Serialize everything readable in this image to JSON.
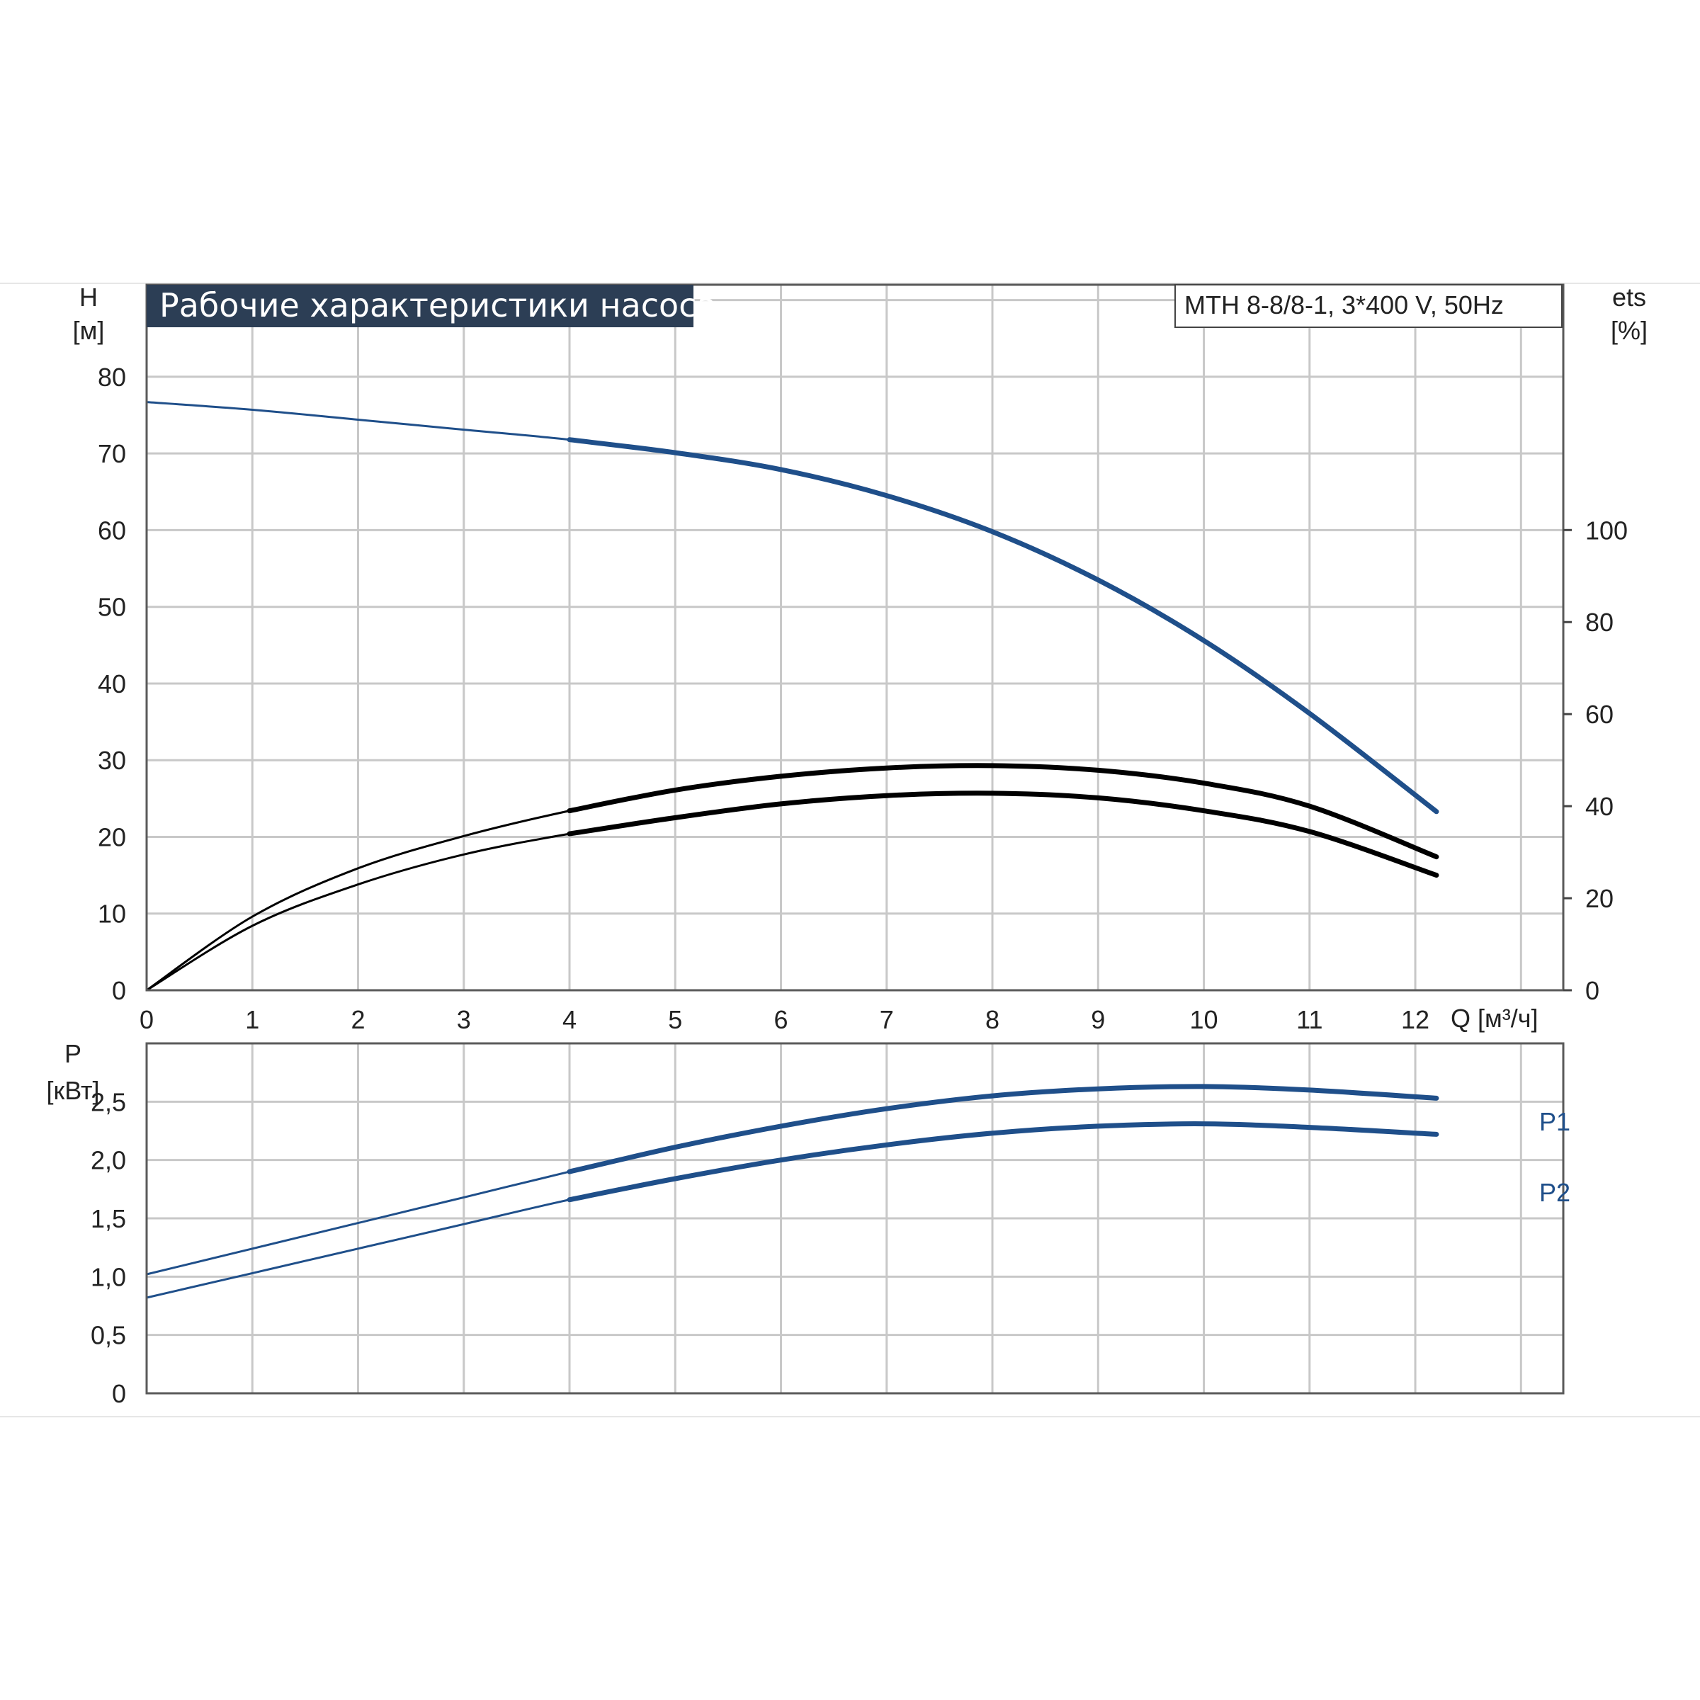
{
  "chart_data": [
    {
      "type": "line",
      "title": "Рабочие характеристики насоса",
      "subtitle": "MTH 8-8/8-1, 3*400 V, 50Hz",
      "ylabel": "H",
      "ylabel_unit": "[м]",
      "y2label": "ets",
      "y2label_unit": "[%]",
      "xlabel": "Q [м³/ч]",
      "xlim": [
        0,
        13.4
      ],
      "ylim": [
        0,
        92
      ],
      "y2lim": [
        0,
        153.3
      ],
      "x_ticks": [
        "0",
        "1",
        "2",
        "3",
        "4",
        "5",
        "6",
        "7",
        "8",
        "9",
        "10",
        "11",
        "12"
      ],
      "y_ticks": [
        "0",
        "10",
        "20",
        "30",
        "40",
        "50",
        "60",
        "70",
        "80"
      ],
      "y2_ticks": [
        "0",
        "20",
        "40",
        "60",
        "80",
        "100"
      ],
      "grid": true,
      "series": [
        {
          "axis": "left",
          "color": "#1f4f8a",
          "x": [
            0,
            1,
            2,
            3,
            4,
            5,
            6,
            7,
            8,
            9,
            10,
            11,
            12.2
          ],
          "y": [
            76.7,
            75.7,
            74.4,
            73.1,
            71.8,
            70.1,
            67.9,
            64.5,
            59.8,
            53.5,
            45.6,
            36.1,
            23.3
          ]
        },
        {
          "axis": "right",
          "color": "#000000",
          "x": [
            0,
            1,
            2,
            3,
            4,
            5,
            6,
            7,
            8,
            9,
            10,
            11,
            12.2
          ],
          "y": [
            0,
            16,
            26.5,
            33.5,
            39,
            43.5,
            46.5,
            48.3,
            48.8,
            47.8,
            45,
            40,
            29
          ]
        },
        {
          "axis": "right",
          "color": "#000000",
          "x": [
            0,
            1,
            2,
            3,
            4,
            5,
            6,
            7,
            8,
            9,
            10,
            11,
            12.2
          ],
          "y": [
            0,
            14,
            23,
            29.5,
            34,
            37.5,
            40.5,
            42.3,
            42.8,
            41.8,
            39,
            34.5,
            25
          ]
        }
      ]
    },
    {
      "type": "line",
      "ylabel": "P",
      "ylabel_unit": "[кВт]",
      "xlim": [
        0,
        13.4
      ],
      "ylim": [
        0,
        3.0
      ],
      "y_ticks": [
        "0",
        "0,5",
        "1,0",
        "1,5",
        "2,0",
        "2,5"
      ],
      "grid": true,
      "series": [
        {
          "name": "P1",
          "color": "#1f4f8a",
          "x": [
            0,
            1,
            2,
            3,
            4,
            5,
            6,
            7,
            8,
            9,
            10,
            11,
            12.2
          ],
          "y": [
            1.02,
            1.24,
            1.46,
            1.68,
            1.9,
            2.11,
            2.29,
            2.44,
            2.55,
            2.61,
            2.63,
            2.6,
            2.53
          ]
        },
        {
          "name": "P2",
          "color": "#1f4f8a",
          "x": [
            0,
            1,
            2,
            3,
            4,
            5,
            6,
            7,
            8,
            9,
            10,
            11,
            12.2
          ],
          "y": [
            0.82,
            1.03,
            1.24,
            1.45,
            1.66,
            1.84,
            2.0,
            2.13,
            2.23,
            2.29,
            2.31,
            2.28,
            2.22
          ]
        }
      ]
    }
  ]
}
